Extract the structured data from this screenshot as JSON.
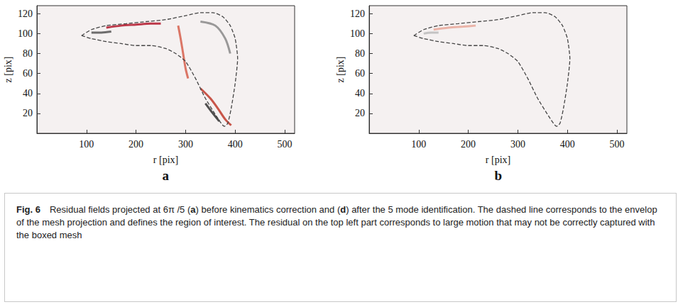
{
  "chart_data": [
    {
      "type": "line",
      "panel_label": "a",
      "x_label": "r [pix]",
      "y_label": "z [pix]",
      "xlim": [
        0,
        520
      ],
      "xticks": [
        100,
        200,
        300,
        400,
        500
      ],
      "ylim": [
        0,
        128
      ],
      "yticks": [
        20,
        40,
        60,
        80,
        100,
        120
      ],
      "grid": false,
      "series": [
        {
          "line_style": "dashed",
          "color": "#444444",
          "points": [
            [
              90,
              98
            ],
            [
              110,
              104
            ],
            [
              140,
              108
            ],
            [
              180,
              110
            ],
            [
              220,
              112
            ],
            [
              260,
              114
            ],
            [
              300,
              118
            ],
            [
              330,
              121
            ],
            [
              355,
              121
            ],
            [
              375,
              117
            ],
            [
              390,
              108
            ],
            [
              400,
              95
            ],
            [
              405,
              75
            ],
            [
              400,
              50
            ],
            [
              392,
              25
            ],
            [
              385,
              10
            ],
            [
              378,
              7
            ],
            [
              365,
              15
            ],
            [
              340,
              35
            ],
            [
              320,
              55
            ],
            [
              300,
              72
            ],
            [
              280,
              80
            ],
            [
              260,
              85
            ],
            [
              230,
              88
            ],
            [
              200,
              88
            ],
            [
              170,
              90
            ],
            [
              140,
              92
            ],
            [
              110,
              95
            ],
            [
              90,
              98
            ]
          ]
        },
        {
          "line_style": "solid",
          "color": "#b2182b",
          "points": [
            [
              140,
              106
            ],
            [
              170,
              108
            ],
            [
              200,
              109
            ],
            [
              230,
              110
            ],
            [
              250,
              110
            ]
          ]
        },
        {
          "line_style": "solid",
          "color": "#555555",
          "points": [
            [
              110,
              101
            ],
            [
              130,
              101
            ],
            [
              150,
              102
            ]
          ]
        },
        {
          "line_style": "solid",
          "color": "#d6604d",
          "points": [
            [
              285,
              108
            ],
            [
              290,
              95
            ],
            [
              295,
              80
            ],
            [
              300,
              65
            ],
            [
              305,
              55
            ]
          ]
        },
        {
          "line_style": "solid",
          "color": "#c0392b",
          "points": [
            [
              330,
              45
            ],
            [
              350,
              35
            ],
            [
              365,
              25
            ],
            [
              380,
              14
            ],
            [
              392,
              8
            ]
          ]
        },
        {
          "line_style": "solid",
          "color": "#333333",
          "points": [
            [
              340,
              30
            ],
            [
              355,
              20
            ],
            [
              368,
              12
            ]
          ]
        },
        {
          "line_style": "solid",
          "color": "#888888",
          "points": [
            [
              330,
              112
            ],
            [
              360,
              108
            ],
            [
              380,
              95
            ],
            [
              390,
              80
            ]
          ]
        }
      ]
    },
    {
      "type": "line",
      "panel_label": "b",
      "x_label": "r [pix]",
      "y_label": "z [pix]",
      "xlim": [
        0,
        520
      ],
      "xticks": [
        100,
        200,
        300,
        400,
        500
      ],
      "ylim": [
        0,
        128
      ],
      "yticks": [
        20,
        40,
        60,
        80,
        100,
        120
      ],
      "grid": false,
      "series": [
        {
          "line_style": "dashed",
          "color": "#444444",
          "points": [
            [
              90,
              98
            ],
            [
              110,
              104
            ],
            [
              140,
              108
            ],
            [
              180,
              110
            ],
            [
              220,
              112
            ],
            [
              260,
              114
            ],
            [
              300,
              118
            ],
            [
              330,
              121
            ],
            [
              355,
              121
            ],
            [
              375,
              117
            ],
            [
              390,
              108
            ],
            [
              400,
              95
            ],
            [
              405,
              75
            ],
            [
              400,
              50
            ],
            [
              392,
              25
            ],
            [
              385,
              10
            ],
            [
              378,
              7
            ],
            [
              365,
              15
            ],
            [
              340,
              35
            ],
            [
              320,
              55
            ],
            [
              300,
              72
            ],
            [
              280,
              80
            ],
            [
              260,
              85
            ],
            [
              230,
              88
            ],
            [
              200,
              88
            ],
            [
              170,
              90
            ],
            [
              140,
              92
            ],
            [
              110,
              95
            ],
            [
              90,
              98
            ]
          ]
        },
        {
          "line_style": "solid",
          "color": "#e8a89a",
          "points": [
            [
              130,
              104
            ],
            [
              160,
              106
            ],
            [
              190,
              107
            ],
            [
              215,
              108
            ]
          ]
        },
        {
          "line_style": "solid",
          "color": "#bbbbbb",
          "points": [
            [
              110,
              100
            ],
            [
              125,
              101
            ],
            [
              140,
              101
            ]
          ]
        }
      ]
    }
  ],
  "caption": {
    "label": "Fig. 6",
    "parts": [
      {
        "text": "Residual fields projected at 6π /5 (",
        "bold": false
      },
      {
        "text": "a",
        "bold": true
      },
      {
        "text": ") before kinematics correction and (",
        "bold": false
      },
      {
        "text": "d",
        "bold": true
      },
      {
        "text": ") after the 5 mode identification. The dashed line corresponds to the envelop of the mesh projection and defines the region of interest. The residual on the top left part corresponds to large motion that may not be correctly captured with the boxed mesh",
        "bold": false
      }
    ]
  }
}
